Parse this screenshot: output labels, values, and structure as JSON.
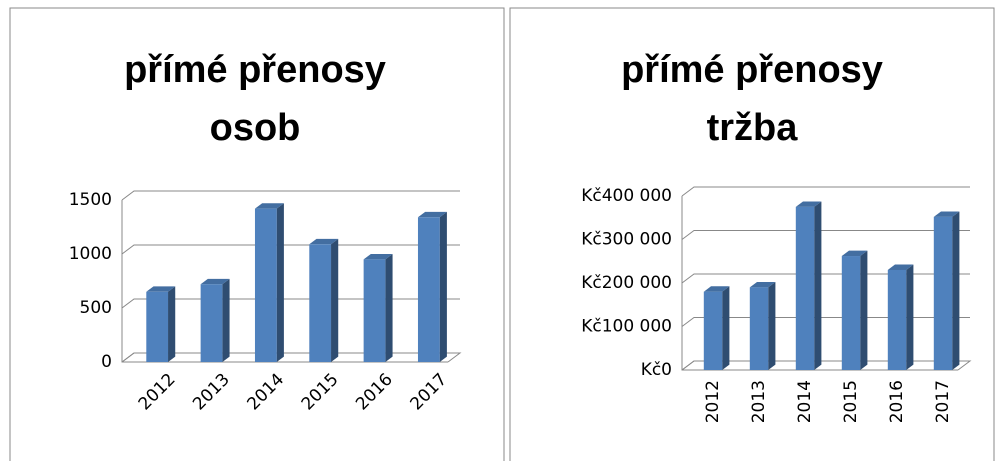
{
  "chart_data": [
    {
      "type": "bar",
      "title": [
        "přímé přenosy",
        "osob"
      ],
      "categories": [
        "2012",
        "2013",
        "2014",
        "2015",
        "2016",
        "2017"
      ],
      "values": [
        650,
        720,
        1420,
        1090,
        950,
        1340
      ],
      "color": "#4f81bd",
      "ylim": [
        0,
        1500
      ],
      "yticks": [
        0,
        500,
        1000,
        1500
      ],
      "grid": true
    },
    {
      "type": "bar",
      "title": [
        "přímé přenosy",
        "tržba"
      ],
      "categories": [
        "2012",
        "2013",
        "2014",
        "2015",
        "2016",
        "2017"
      ],
      "values": [
        180000,
        190000,
        375000,
        262000,
        230000,
        352000
      ],
      "color": "#4f81bd",
      "ylim": [
        0,
        400000
      ],
      "yticks": [
        {
          "value": 0,
          "label": "Kč0"
        },
        {
          "value": 100000,
          "label": "Kč100 000"
        },
        {
          "value": 200000,
          "label": "Kč200 000"
        },
        {
          "value": 300000,
          "label": "Kč300 000"
        },
        {
          "value": 400000,
          "label": "Kč400 000"
        }
      ],
      "grid": true
    }
  ]
}
